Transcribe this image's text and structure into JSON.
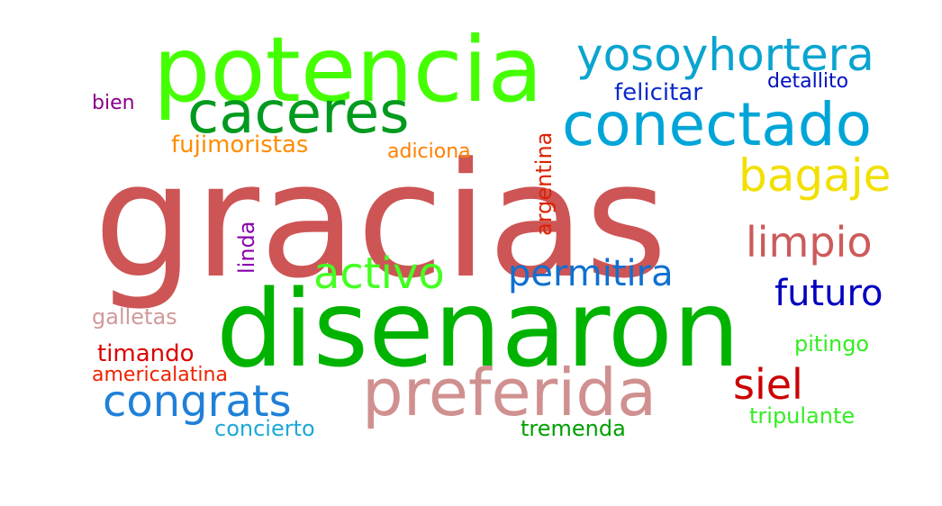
{
  "words": {
    "gracias": {
      "text": "gracias",
      "color": "#cd5555"
    },
    "disenaron": {
      "text": "disenaron",
      "color": "#00b300"
    },
    "potencia": {
      "text": "potencia",
      "color": "#44ff00"
    },
    "preferida": {
      "text": "preferida",
      "color": "#d09090"
    },
    "conectado": {
      "text": "conectado",
      "color": "#00a5d8"
    },
    "caceres": {
      "text": "caceres",
      "color": "#009a1f"
    },
    "yosoyhortera": {
      "text": "yosoyhortera",
      "color": "#0aa4d0"
    },
    "activo": {
      "text": "activo",
      "color": "#44ff22"
    },
    "congrats": {
      "text": "congrats",
      "color": "#1f80d8"
    },
    "bagaje": {
      "text": "bagaje",
      "color": "#f2e000"
    },
    "limpio": {
      "text": "limpio",
      "color": "#cd5a5a"
    },
    "permitira": {
      "text": "permitira",
      "color": "#1070d0"
    },
    "futuro": {
      "text": "futuro",
      "color": "#0000c0"
    },
    "siel": {
      "text": "siel",
      "color": "#cc0000"
    },
    "fujimoristas": {
      "text": "fujimoristas",
      "color": "#ff8c00"
    },
    "felicitar": {
      "text": "felicitar",
      "color": "#0a2acd"
    },
    "detallito": {
      "text": "detallito",
      "color": "#0010c0"
    },
    "adiciona": {
      "text": "adiciona",
      "color": "#ff8000"
    },
    "bien": {
      "text": "bien",
      "color": "#880088"
    },
    "argentina": {
      "text": "argentina",
      "color": "#dd2200"
    },
    "linda": {
      "text": "linda",
      "color": "#8800aa"
    },
    "galletas": {
      "text": "galletas",
      "color": "#d09a9a"
    },
    "timando": {
      "text": "timando",
      "color": "#dd0000"
    },
    "americalatina": {
      "text": "americalatina",
      "color": "#ee2200"
    },
    "pitingo": {
      "text": "pitingo",
      "color": "#33ee22"
    },
    "concierto": {
      "text": "concierto",
      "color": "#1ca8d8"
    },
    "tremenda": {
      "text": "tremenda",
      "color": "#00a000"
    },
    "tripulante": {
      "text": "tripulante",
      "color": "#33ee22"
    }
  }
}
